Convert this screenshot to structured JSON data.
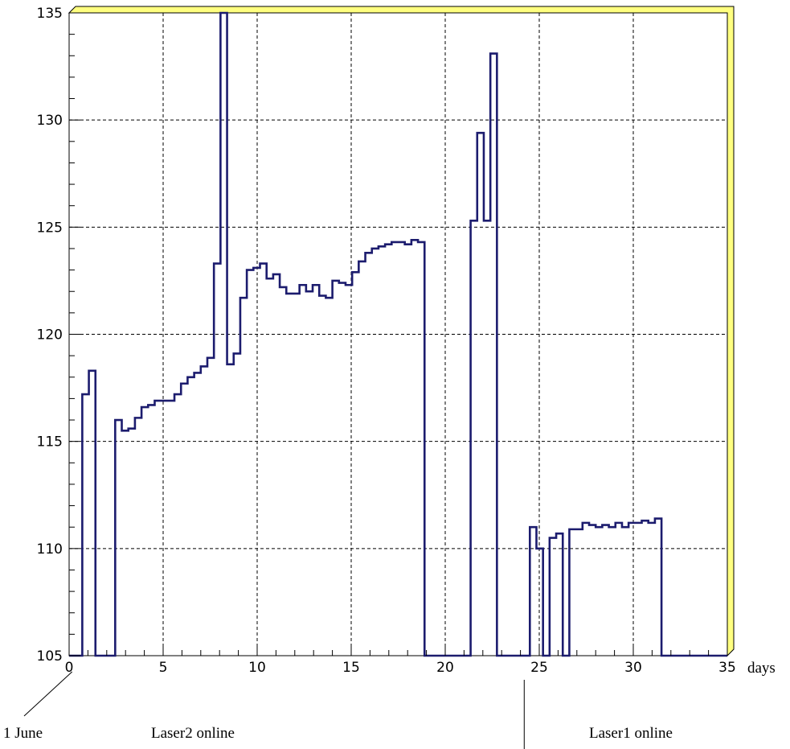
{
  "chart_data": {
    "type": "line",
    "subtype": "step-histogram",
    "xlabel": "days",
    "xlim": [
      0,
      35
    ],
    "ylim": [
      105,
      135
    ],
    "x_ticks": [
      0,
      5,
      10,
      15,
      20,
      25,
      30,
      35
    ],
    "y_ticks": [
      105,
      110,
      115,
      120,
      125,
      130,
      135
    ],
    "grid": true,
    "colors": {
      "line": "#1c1c6e",
      "frame_shadow": "#ffff80",
      "axes": "#000000"
    },
    "annotations": [
      {
        "id": "june",
        "text": "1 June",
        "x": 0.5
      },
      {
        "id": "laser2",
        "text": "Laser2 online"
      },
      {
        "id": "laser1",
        "text": "Laser1 online",
        "x": 24.2
      }
    ],
    "series": [
      {
        "bin_width": 0.35,
        "x_start": 0,
        "values": [
          105.0,
          105.0,
          117.2,
          118.3,
          105.0,
          105.0,
          105.0,
          116.0,
          115.5,
          115.6,
          116.1,
          116.6,
          116.7,
          116.9,
          116.9,
          116.9,
          117.2,
          117.7,
          118.0,
          118.2,
          118.5,
          118.9,
          123.3,
          135.0,
          118.6,
          119.1,
          121.7,
          123.0,
          123.1,
          123.3,
          122.6,
          122.8,
          122.2,
          121.9,
          121.9,
          122.3,
          122.0,
          122.3,
          121.8,
          121.7,
          122.5,
          122.4,
          122.3,
          122.9,
          123.4,
          123.8,
          124.0,
          124.1,
          124.2,
          124.3,
          124.3,
          124.2,
          124.4,
          124.3,
          105.0,
          105.0,
          105.0,
          105.0,
          105.0,
          105.0,
          105.0,
          125.3,
          129.4,
          125.3,
          133.1,
          105.0,
          105.0,
          105.0,
          105.0,
          105.0,
          111.0,
          110.0,
          105.0,
          110.5,
          110.7,
          105.0,
          110.9,
          110.9,
          111.2,
          111.1,
          111.0,
          111.1,
          111.0,
          111.2,
          111.0,
          111.2,
          111.2,
          111.3,
          111.2,
          111.4,
          105.0,
          105.0,
          105.0,
          105.0,
          105.0,
          105.0,
          105.0,
          105.0,
          105.0,
          105.0
        ]
      }
    ]
  }
}
